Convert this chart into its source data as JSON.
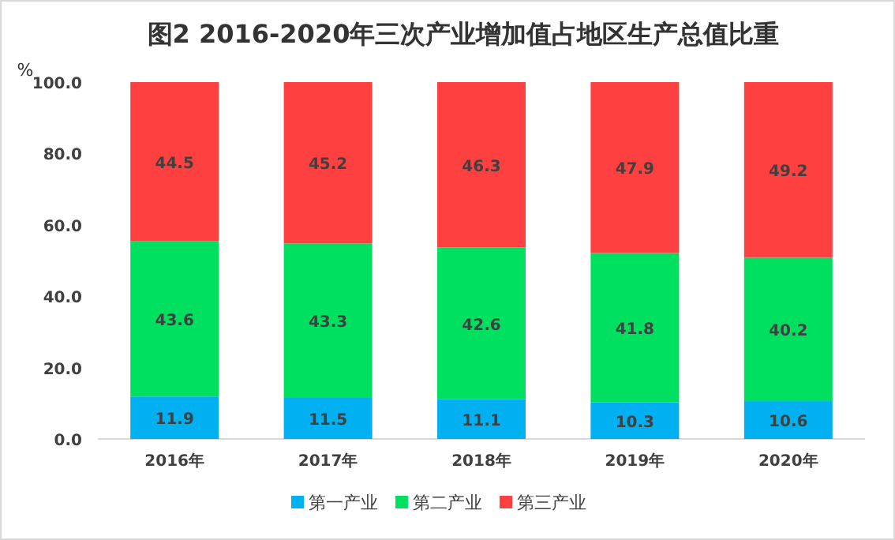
{
  "chart_data": {
    "type": "bar",
    "title": "图2  2016-2020年三次产业增加值占地区生产总值比重",
    "ylabel": "%",
    "categories": [
      "2016年",
      "2017年",
      "2018年",
      "2019年",
      "2020年"
    ],
    "series": [
      {
        "name": "第一产业",
        "color": "#00b0f0",
        "values": [
          11.9,
          11.5,
          11.1,
          10.3,
          10.6
        ]
      },
      {
        "name": "第二产业",
        "color": "#00e060",
        "values": [
          43.6,
          43.3,
          42.6,
          41.8,
          40.2
        ]
      },
      {
        "name": "第三产业",
        "color": "#ff4040",
        "values": [
          44.5,
          45.2,
          46.3,
          47.9,
          49.2
        ]
      }
    ],
    "stacked": true,
    "data_labels": true,
    "legend": "bottom",
    "ylim": [
      0,
      100
    ],
    "yticks": [
      {
        "value": 0,
        "label": "0.0"
      },
      {
        "value": 20,
        "label": "20.0"
      },
      {
        "value": 40,
        "label": "40.0"
      },
      {
        "value": 60,
        "label": "60.0"
      },
      {
        "value": 80,
        "label": "80.0"
      },
      {
        "value": 100,
        "label": "100.0"
      }
    ]
  }
}
